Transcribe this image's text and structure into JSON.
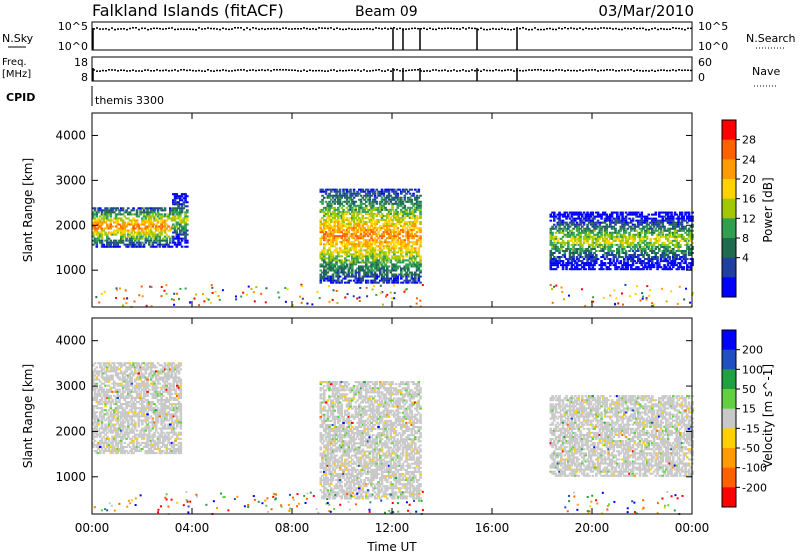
{
  "header": {
    "site": "Falkland Islands (fitACF)",
    "beam": "Beam 09",
    "date": "03/Mar/2010"
  },
  "top_panels": {
    "nsky_label": "N.Sky",
    "nsky_ticks": [
      "10^5",
      "10^0"
    ],
    "nsearch_label": "N.Search",
    "nsearch_ticks": [
      "10^5",
      "10^0"
    ],
    "freq_label_1": "Freq.",
    "freq_label_2": "[MHz]",
    "freq_ticks": [
      "18",
      "8"
    ],
    "nave_label": "Nave",
    "nave_ticks": [
      "60",
      "0"
    ],
    "cpid_label": "CPID",
    "cpid_value": "themis 3300"
  },
  "chart_data": [
    {
      "type": "heatmap",
      "panel": "power",
      "ylabel": "Slant Range [km]",
      "y_ticks": [
        1000,
        2000,
        3000,
        4000
      ],
      "ylim": [
        180,
        4500
      ],
      "xlim_hours": [
        0,
        24
      ],
      "colorbar": {
        "label": "Power [dB]",
        "ticks": [
          "28",
          "24",
          "20",
          "16",
          "12",
          "8",
          "4"
        ],
        "colors": [
          "#ff0000",
          "#ff6000",
          "#ff9a00",
          "#ffd200",
          "#a0c800",
          "#30a050",
          "#206a50",
          "#2040a0",
          "#0000ff"
        ]
      },
      "regions": [
        {
          "hours": [
            0.0,
            3.2
          ],
          "km": [
            1500,
            2400
          ],
          "level": "high"
        },
        {
          "hours": [
            3.2,
            3.8
          ],
          "km": [
            1500,
            2700
          ],
          "level": "medium"
        },
        {
          "hours": [
            9.1,
            13.1
          ],
          "km": [
            700,
            2800
          ],
          "level": "high"
        },
        {
          "hours": [
            18.3,
            24.0
          ],
          "km": [
            1000,
            2300
          ],
          "level": "medium"
        }
      ]
    },
    {
      "type": "heatmap",
      "panel": "velocity",
      "ylabel": "Slant Range [km]",
      "y_ticks": [
        1000,
        2000,
        3000,
        4000
      ],
      "ylim": [
        180,
        4500
      ],
      "xlim_hours": [
        0,
        24
      ],
      "colorbar": {
        "label": "Velocity [m s^-1]",
        "ticks": [
          "200",
          "100",
          "50",
          "15",
          "-15",
          "-50",
          "-100",
          "-200"
        ],
        "colors": [
          "#0000ff",
          "#2050c0",
          "#20a040",
          "#60d040",
          "#c8c8c8",
          "#ffd000",
          "#ff9a00",
          "#ff6000",
          "#ff0000"
        ]
      },
      "regions": [
        {
          "hours": [
            0.0,
            3.5
          ],
          "km": [
            1500,
            3500
          ],
          "level": "near-zero"
        },
        {
          "hours": [
            9.1,
            13.1
          ],
          "km": [
            500,
            3100
          ],
          "level": "near-zero"
        },
        {
          "hours": [
            18.3,
            24.0
          ],
          "km": [
            1000,
            2800
          ],
          "level": "near-zero"
        }
      ]
    }
  ],
  "x_axis": {
    "ticks": [
      "00:00",
      "04:00",
      "08:00",
      "12:00",
      "16:00",
      "20:00",
      "00:00"
    ],
    "label": "Time UT"
  }
}
